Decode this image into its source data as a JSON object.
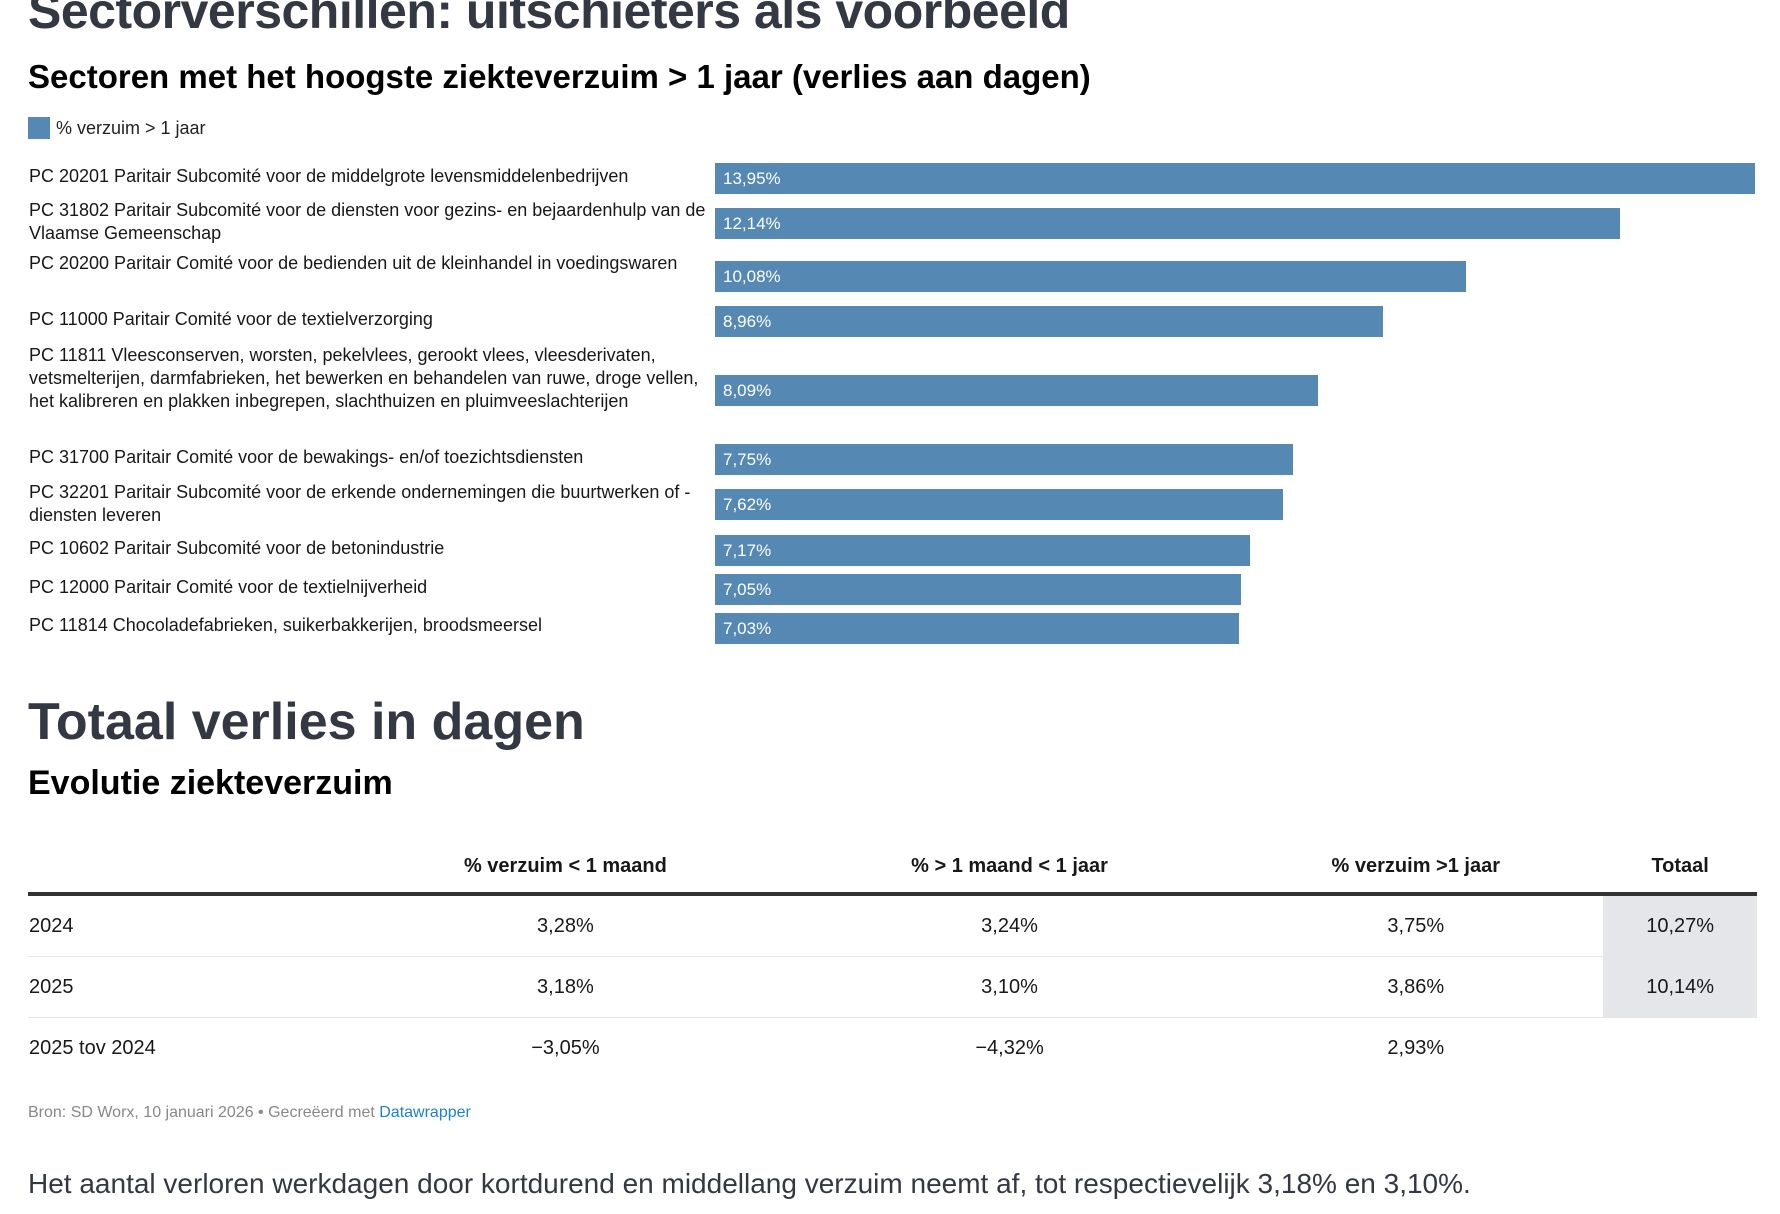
{
  "section_title": "Sectorverschillen: uitschieters als voorbeeld",
  "chart_data": {
    "type": "bar",
    "orientation": "horizontal",
    "title": "Sectoren met het hoogste ziekteverzuim > 1 jaar (verlies aan dagen)",
    "legend": [
      {
        "name": "% verzuim > 1 jaar",
        "color": "#5589b3"
      }
    ],
    "legend_position": "top-left",
    "categories": [
      "PC 20201 Paritair Subcomité voor de middelgrote levensmiddelenbedrijven",
      "PC 31802 Paritair Subcomité voor de diensten voor gezins- en bejaardenhulp van de Vlaamse Gemeenschap",
      "PC 20200 Paritair Comité voor de bedienden uit de kleinhandel in voedingswaren",
      "PC 11000 Paritair Comité voor de textielverzorging",
      "PC 11811 Vleesconserven, worsten, pekelvlees, gerookt vlees, vleesderivaten, vetsmelterijen, darmfabrieken, het bewerken en behandelen van ruwe, droge vellen, het kalibreren en plakken inbegrepen, slachthuizen en pluimveeslachterijen",
      "PC 31700 Paritair Comité voor de bewakings- en/of toezichtsdiensten",
      "PC 32201 Paritair Subcomité voor de erkende ondernemingen die buurtwerken of -diensten leveren",
      "PC 10602 Paritair Subcomité voor de betonindustrie",
      "PC 12000 Paritair Comité voor de textielnijverheid",
      "PC 11814 Chocoladefabrieken, suikerbakkerijen, broodsmeersel"
    ],
    "values": [
      13.95,
      12.14,
      10.08,
      8.96,
      8.09,
      7.75,
      7.62,
      7.17,
      7.05,
      7.03
    ],
    "value_labels": [
      "13,95%",
      "12,14%",
      "10,08%",
      "8,96%",
      "8,09%",
      "7,75%",
      "7,62%",
      "7,17%",
      "7,05%",
      "7,03%"
    ],
    "xlim": [
      0,
      13.95
    ]
  },
  "table_section_title": "Totaal verlies in dagen",
  "table": {
    "title": "Evolutie ziekteverzuim",
    "headers": [
      "",
      "% verzuim < 1 maand",
      "% > 1 maand < 1 jaar",
      "% verzuim >1 jaar",
      "Totaal"
    ],
    "rows": [
      [
        "2024",
        "3,28%",
        "3,24%",
        "3,75%",
        "10,27%"
      ],
      [
        "2025",
        "3,18%",
        "3,10%",
        "3,86%",
        "10,14%"
      ],
      [
        "2025 tov 2024",
        "−3,05%",
        "−4,32%",
        "2,93%",
        ""
      ]
    ],
    "highlight_color": "#e5e6ea"
  },
  "footer": {
    "source": "Bron: SD Worx, 10 januari 2026 • Gecreëerd met ",
    "link": "Datawrapper"
  },
  "paragraph": "Het aantal verloren werkdagen door kortdurend en middellang verzuim neemt af, tot respectievelijk 3,18% en 3,10%."
}
